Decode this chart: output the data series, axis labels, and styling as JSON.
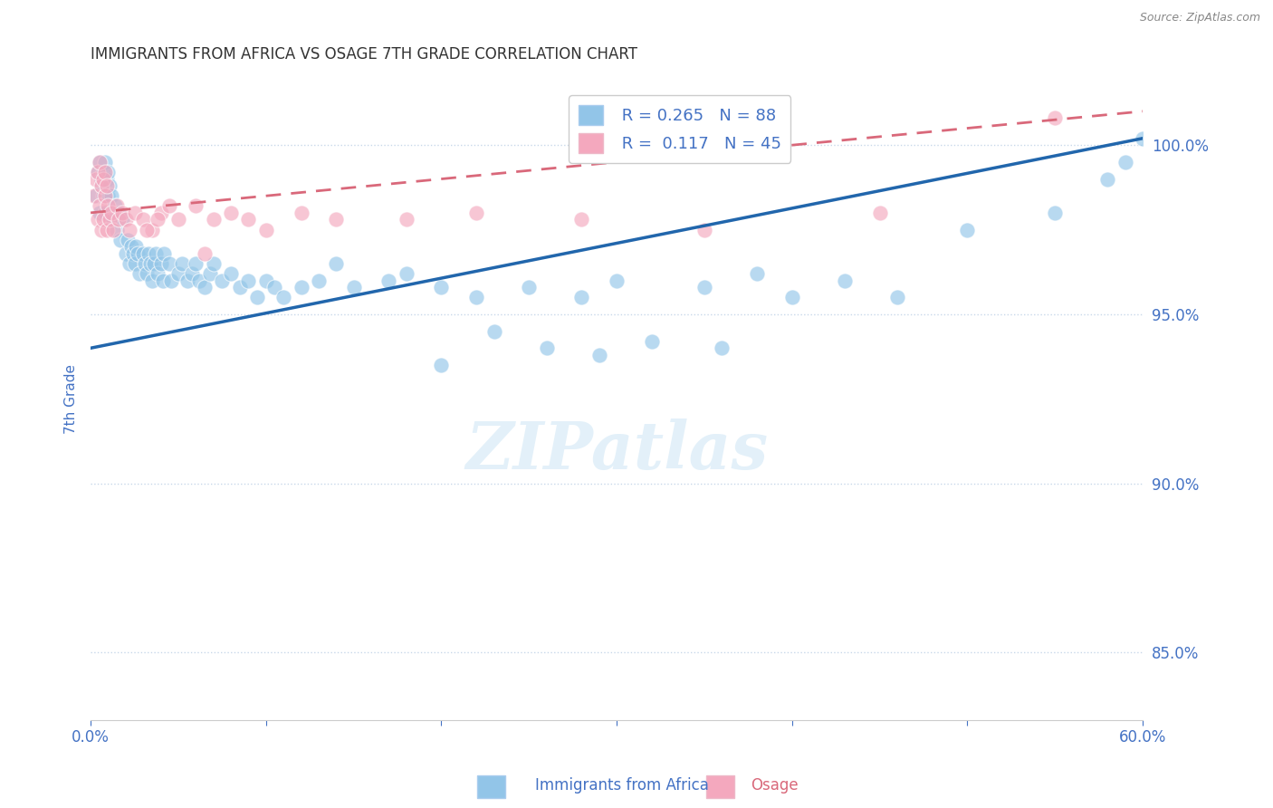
{
  "title": "IMMIGRANTS FROM AFRICA VS OSAGE 7TH GRADE CORRELATION CHART",
  "source": "Source: ZipAtlas.com",
  "ylabel": "7th Grade",
  "xlim": [
    0.0,
    60.0
  ],
  "ylim": [
    83.0,
    102.0
  ],
  "yticks": [
    85.0,
    90.0,
    95.0,
    100.0
  ],
  "ytick_labels": [
    "85.0%",
    "90.0%",
    "95.0%",
    "100.0%"
  ],
  "xticks": [
    0.0,
    10.0,
    20.0,
    30.0,
    40.0,
    50.0,
    60.0
  ],
  "xtick_labels": [
    "0.0%",
    "",
    "",
    "",
    "",
    "",
    "60.0%"
  ],
  "blue_R": 0.265,
  "blue_N": 88,
  "pink_R": 0.117,
  "pink_N": 45,
  "blue_color": "#92C5E8",
  "pink_color": "#F4A8BE",
  "blue_line_color": "#2166ac",
  "pink_line_color": "#D9687A",
  "legend_blue_label": "Immigrants from Africa",
  "legend_pink_label": "Osage",
  "blue_scatter_x": [
    0.3,
    0.4,
    0.5,
    0.5,
    0.6,
    0.6,
    0.7,
    0.7,
    0.8,
    0.8,
    0.9,
    1.0,
    1.0,
    1.1,
    1.2,
    1.3,
    1.4,
    1.5,
    1.6,
    1.7,
    1.8,
    2.0,
    2.1,
    2.2,
    2.3,
    2.4,
    2.5,
    2.6,
    2.7,
    2.8,
    3.0,
    3.1,
    3.2,
    3.3,
    3.4,
    3.5,
    3.6,
    3.7,
    3.8,
    4.0,
    4.1,
    4.2,
    4.5,
    4.6,
    5.0,
    5.2,
    5.5,
    5.8,
    6.0,
    6.2,
    6.5,
    6.8,
    7.0,
    7.5,
    8.0,
    8.5,
    9.0,
    9.5,
    10.0,
    10.5,
    11.0,
    12.0,
    13.0,
    14.0,
    15.0,
    17.0,
    18.0,
    20.0,
    22.0,
    25.0,
    28.0,
    30.0,
    35.0,
    38.0,
    40.0,
    43.0,
    46.0,
    50.0,
    55.0,
    58.0,
    59.0,
    60.0,
    20.0,
    23.0,
    26.0,
    29.0,
    32.0,
    36.0
  ],
  "blue_scatter_y": [
    98.5,
    99.2,
    98.0,
    99.5,
    98.8,
    99.0,
    99.2,
    98.5,
    98.0,
    99.5,
    99.0,
    98.5,
    99.2,
    98.8,
    98.5,
    97.8,
    98.2,
    97.5,
    98.0,
    97.2,
    97.8,
    96.8,
    97.2,
    96.5,
    97.0,
    96.8,
    96.5,
    97.0,
    96.8,
    96.2,
    96.8,
    96.5,
    96.2,
    96.8,
    96.5,
    96.0,
    96.5,
    96.8,
    96.2,
    96.5,
    96.0,
    96.8,
    96.5,
    96.0,
    96.2,
    96.5,
    96.0,
    96.2,
    96.5,
    96.0,
    95.8,
    96.2,
    96.5,
    96.0,
    96.2,
    95.8,
    96.0,
    95.5,
    96.0,
    95.8,
    95.5,
    95.8,
    96.0,
    96.5,
    95.8,
    96.0,
    96.2,
    95.8,
    95.5,
    95.8,
    95.5,
    96.0,
    95.8,
    96.2,
    95.5,
    96.0,
    95.5,
    97.5,
    98.0,
    99.0,
    99.5,
    100.2,
    93.5,
    94.5,
    94.0,
    93.8,
    94.2,
    94.0
  ],
  "pink_scatter_x": [
    0.2,
    0.3,
    0.4,
    0.4,
    0.5,
    0.5,
    0.6,
    0.6,
    0.7,
    0.7,
    0.8,
    0.8,
    0.9,
    0.9,
    1.0,
    1.1,
    1.2,
    1.3,
    1.5,
    1.6,
    1.8,
    2.0,
    2.2,
    2.5,
    3.0,
    3.5,
    4.0,
    5.0,
    6.0,
    7.0,
    8.0,
    9.0,
    10.0,
    12.0,
    14.0,
    18.0,
    22.0,
    28.0,
    35.0,
    45.0,
    55.0,
    3.2,
    3.8,
    4.5,
    6.5
  ],
  "pink_scatter_y": [
    98.5,
    99.0,
    97.8,
    99.2,
    98.2,
    99.5,
    97.5,
    98.8,
    97.8,
    99.0,
    98.5,
    99.2,
    97.5,
    98.8,
    98.2,
    97.8,
    98.0,
    97.5,
    98.2,
    97.8,
    98.0,
    97.8,
    97.5,
    98.0,
    97.8,
    97.5,
    98.0,
    97.8,
    98.2,
    97.8,
    98.0,
    97.8,
    97.5,
    98.0,
    97.8,
    97.8,
    98.0,
    97.8,
    97.5,
    98.0,
    100.8,
    97.5,
    97.8,
    98.2,
    96.8
  ],
  "blue_trend_x": [
    0.0,
    60.0
  ],
  "blue_trend_y": [
    94.0,
    100.2
  ],
  "pink_trend_x": [
    0.0,
    60.0
  ],
  "pink_trend_y": [
    98.0,
    101.0
  ],
  "watermark": "ZIPatlas",
  "background_color": "#ffffff",
  "grid_color": "#c8d8ea",
  "title_color": "#333333",
  "axis_label_color": "#4472c4"
}
